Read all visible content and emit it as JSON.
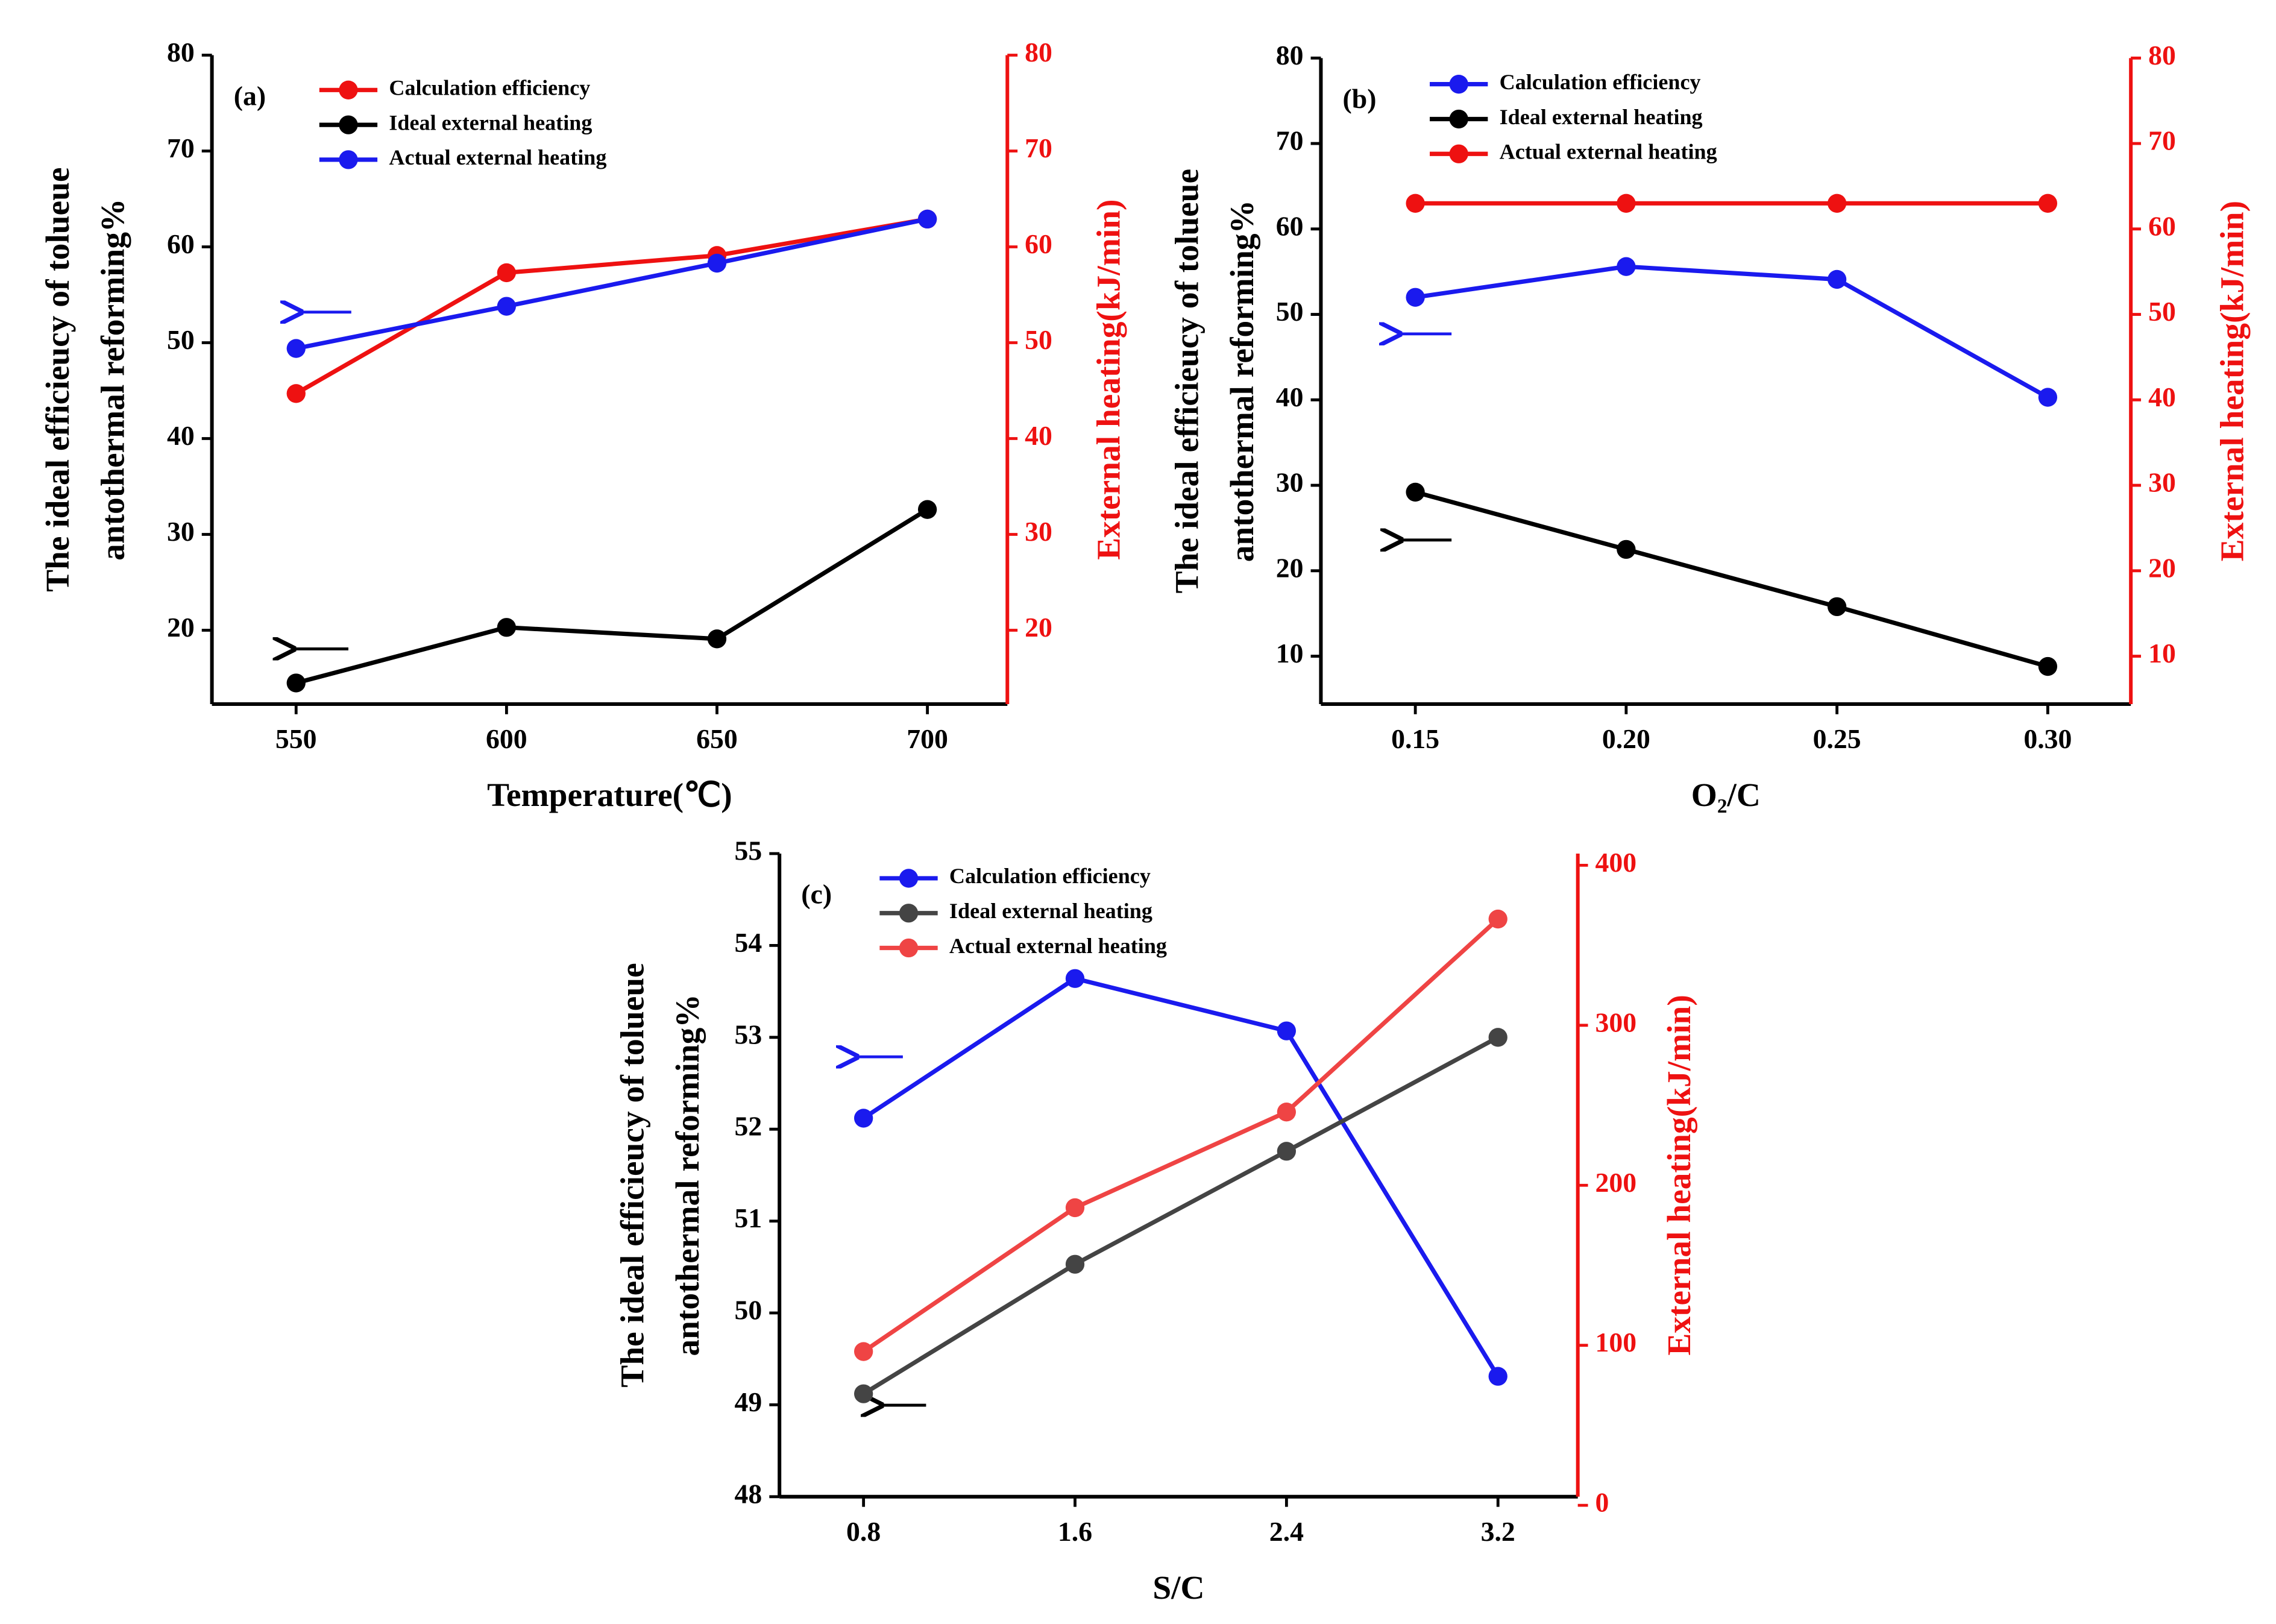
{
  "chart_data": [
    {
      "type": "line",
      "label": "(a)",
      "xlabel": "Temperature(℃)",
      "ylabel": [
        "The ideal efficieucy of tolueue",
        "antothermal reforming%"
      ],
      "y2label": "External heating(kJ/min)",
      "x": [
        550,
        600,
        650,
        700
      ],
      "xlim": [
        530,
        719
      ],
      "xticks": [
        550,
        600,
        650,
        700
      ],
      "ylim": [
        12.3,
        80
      ],
      "yticks": [
        20,
        30,
        40,
        50,
        60,
        70,
        80
      ],
      "y2lim": [
        12.3,
        80
      ],
      "y2ticks": [
        20,
        30,
        40,
        50,
        60,
        70,
        80
      ],
      "series": [
        {
          "name": "Calculation efficiency",
          "color": "#ee1111",
          "axis": "y2",
          "values": [
            44.7,
            57.3,
            59.1,
            62.9
          ]
        },
        {
          "name": "Ideal external heating",
          "color": "#000000",
          "values": [
            14.5,
            20.3,
            19.1,
            32.6
          ]
        },
        {
          "name": "Actual external heating",
          "color": "#1a1aee",
          "values": [
            49.4,
            53.8,
            58.3,
            62.9
          ]
        }
      ]
    },
    {
      "type": "line",
      "label": "(b)",
      "xlabel": "O₂/C",
      "ylabel": [
        "The ideal efficieucy of tolueue",
        "antothermal reforming%"
      ],
      "y2label": "External heating(kJ/min)",
      "x": [
        0.15,
        0.2,
        0.25,
        0.3
      ],
      "xlim": [
        0.1276,
        0.3197
      ],
      "xticks": [
        0.15,
        {
          "value": 0.2,
          "label": "0.20"
        },
        0.25,
        {
          "value": 0.3,
          "label": "0.30"
        }
      ],
      "ylim": [
        4.4,
        80
      ],
      "yticks": [
        10,
        20,
        30,
        40,
        50,
        60,
        70,
        80
      ],
      "y2lim": [
        4.4,
        80
      ],
      "y2ticks": [
        10,
        20,
        30,
        40,
        50,
        60,
        70,
        80
      ],
      "series": [
        {
          "name": "Calculation efficiency",
          "color": "#1a1aee",
          "values": [
            52.0,
            55.6,
            54.1,
            40.3
          ]
        },
        {
          "name": "Ideal external heating",
          "color": "#000000",
          "values": [
            29.2,
            22.5,
            15.8,
            8.8
          ]
        },
        {
          "name": "Actual external heating",
          "color": "#ee1111",
          "axis": "y2",
          "values": [
            63,
            63,
            63,
            63
          ]
        }
      ]
    },
    {
      "type": "line",
      "label": "(c)",
      "xlabel": "S/C",
      "ylabel": [
        "The ideal efficieucy of tolueue",
        "antothermal reforming%"
      ],
      "y2label": "External heating(kJ/min)",
      "x": [
        0.8,
        1.6,
        2.4,
        3.2
      ],
      "xlim": [
        0.482,
        3.502
      ],
      "xticks": [
        0.8,
        1.6,
        2.4,
        3.2
      ],
      "ylim": [
        48,
        55
      ],
      "yticks": [
        48,
        49,
        50,
        51,
        52,
        53,
        54,
        55
      ],
      "y2lim": [
        5.4,
        407.3
      ],
      "y2ticks": [
        0,
        100,
        200,
        300,
        400
      ],
      "series": [
        {
          "name": "Calculation efficiency",
          "color": "#1a1aee",
          "values": [
            52.12,
            53.64,
            53.07,
            49.31
          ]
        },
        {
          "name": "Ideal external heating",
          "color": "#444444",
          "values": [
            49.12,
            50.53,
            51.76,
            53.0
          ]
        },
        {
          "name": "Actual external heating",
          "color": "#ef4444",
          "axis": "y2",
          "values": [
            96.1,
            186,
            245.8,
            366.4
          ]
        }
      ]
    }
  ]
}
